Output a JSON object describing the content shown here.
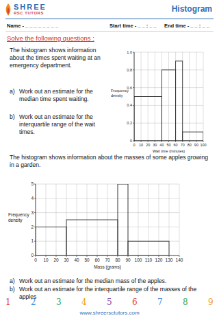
{
  "header": {
    "brand": "SHREE",
    "brand_sub": "RSC TUTORS",
    "title": "Histogram",
    "name": "Name - _ _ _ _ _ _ _ _",
    "start_time": "Start time - _ _ : _ _",
    "end_time": "End time - _ _ : _ _"
  },
  "instruction": "Solve the following questions :",
  "questions": [
    {
      "intro": "The histogram shows information about the times spent waiting at an emergency department.",
      "parts": [
        {
          "label": "a)",
          "text": "Work out an estimate for the median time spent waiting."
        },
        {
          "label": "b)",
          "text": "Work out an estimate for the interquartile range of the wait times."
        }
      ]
    },
    {
      "intro": "The histogram shows information about the masses of some apples growing in a garden.",
      "parts": [
        {
          "label": "a)",
          "text": "Work out an estimate for the median mass of the apples."
        },
        {
          "label": "b)",
          "text": "Work out an estimate for the interquartile range of the masses of the apples"
        }
      ]
    }
  ],
  "chart_data": [
    {
      "type": "histogram",
      "x_label": "Wait time (minutes)",
      "y_label": "Frequency density",
      "bins": [
        0,
        40,
        60,
        70,
        100
      ],
      "values": [
        0.5,
        0.8,
        0.9,
        0.1
      ],
      "color": "#333333",
      "xlim": [
        0,
        100
      ],
      "ylim": [
        0,
        1
      ],
      "xticks": [
        0,
        10,
        20,
        30,
        40,
        50,
        60,
        70,
        80,
        90,
        100
      ],
      "yticks": [
        0,
        0.2,
        0.4,
        0.6,
        0.8,
        {
          "value": 1,
          "label": "1.0"
        }
      ],
      "grid": true
    },
    {
      "type": "histogram",
      "x_label": "Mass (grams)",
      "y_label": "Frequency density",
      "bins": [
        0,
        30,
        80,
        90,
        130
      ],
      "values": [
        2,
        2.5,
        5,
        1
      ],
      "color": "#333333",
      "xlim": [
        0,
        140
      ],
      "ylim": [
        0,
        5
      ],
      "xticks": [
        0,
        10,
        20,
        30,
        40,
        50,
        60,
        70,
        80,
        90,
        100,
        110,
        120,
        130,
        140
      ],
      "yticks": [
        0,
        1,
        2,
        3,
        4,
        5
      ],
      "grid": true
    }
  ],
  "footer": {
    "digits": [
      1,
      2,
      3,
      4,
      5,
      6,
      7,
      8,
      9
    ],
    "website": "www.shreersctutors.com"
  }
}
